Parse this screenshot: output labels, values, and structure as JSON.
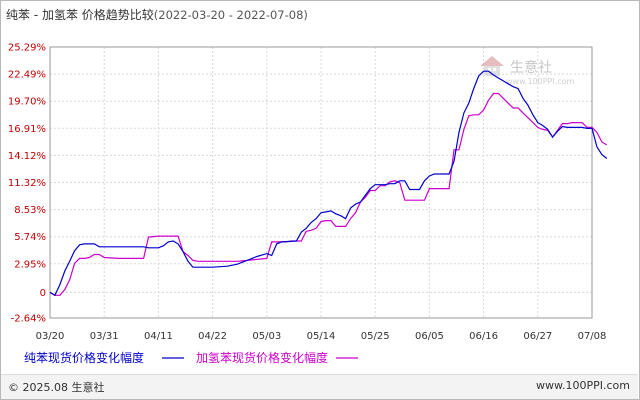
{
  "title": "纯苯 - 加氢苯 价格趋势比较",
  "date_range": "(2022-03-20 - 2022-07-08)",
  "watermark_text": "生意社",
  "watermark_url": "www.100PPI.com",
  "footer_left": "© 2025.08 生意社",
  "footer_right": "www.100PPI.com",
  "colors": {
    "series1": "#0000cc",
    "series2": "#cc00cc",
    "ytick": "#c00000"
  },
  "chart_data": {
    "type": "line",
    "ylim": [
      -2.64,
      25.29
    ],
    "yticks": [
      "25.29%",
      "22.49%",
      "19.70%",
      "16.91%",
      "14.12%",
      "11.32%",
      "8.53%",
      "5.74%",
      "2.95%",
      "0",
      "-2.64%"
    ],
    "ytick_values": [
      25.29,
      22.49,
      19.7,
      16.91,
      14.12,
      11.32,
      8.53,
      5.74,
      2.95,
      0,
      -2.64
    ],
    "xticks": [
      "03/20",
      "03/31",
      "04/11",
      "04/22",
      "05/03",
      "05/14",
      "05/25",
      "06/05",
      "06/16",
      "06/27",
      "07/08"
    ],
    "xlim_days": [
      0,
      110
    ],
    "grid": true,
    "legend_position": "bottom",
    "series": [
      {
        "name": "纯苯现货价格变化幅度",
        "points": [
          [
            0,
            0
          ],
          [
            1,
            -0.3
          ],
          [
            2,
            0.8
          ],
          [
            3,
            2.2
          ],
          [
            4,
            3.2
          ],
          [
            5,
            4.3
          ],
          [
            6,
            4.9
          ],
          [
            7,
            5.0
          ],
          [
            9,
            5.0
          ],
          [
            10,
            4.7
          ],
          [
            13,
            4.7
          ],
          [
            16,
            4.7
          ],
          [
            19,
            4.7
          ],
          [
            20,
            4.6
          ],
          [
            22,
            4.6
          ],
          [
            23,
            4.8
          ],
          [
            24,
            5.2
          ],
          [
            25,
            5.3
          ],
          [
            26,
            5.0
          ],
          [
            27,
            4.2
          ],
          [
            28,
            3.2
          ],
          [
            29,
            2.6
          ],
          [
            30,
            2.6
          ],
          [
            33,
            2.6
          ],
          [
            36,
            2.7
          ],
          [
            38,
            2.9
          ],
          [
            40,
            3.3
          ],
          [
            41,
            3.5
          ],
          [
            42,
            3.7
          ],
          [
            44,
            4.0
          ],
          [
            45,
            3.8
          ],
          [
            46,
            5.0
          ],
          [
            47,
            5.2
          ],
          [
            50,
            5.3
          ],
          [
            51,
            6.2
          ],
          [
            52,
            6.6
          ],
          [
            53,
            7.2
          ],
          [
            54,
            7.6
          ],
          [
            55,
            8.2
          ],
          [
            56,
            8.3
          ],
          [
            57,
            8.4
          ],
          [
            58,
            8.1
          ],
          [
            59,
            7.9
          ],
          [
            60,
            7.6
          ],
          [
            61,
            8.7
          ],
          [
            62,
            9.1
          ],
          [
            63,
            9.3
          ],
          [
            64,
            10.0
          ],
          [
            65,
            10.7
          ],
          [
            66,
            11.1
          ],
          [
            67,
            11.1
          ],
          [
            68,
            11.1
          ],
          [
            69,
            11.2
          ],
          [
            70,
            11.2
          ],
          [
            71,
            11.5
          ],
          [
            72,
            11.5
          ],
          [
            73,
            10.6
          ],
          [
            74,
            10.6
          ],
          [
            75,
            10.6
          ],
          [
            76,
            11.5
          ],
          [
            77,
            12.0
          ],
          [
            78,
            12.2
          ],
          [
            79,
            12.2
          ],
          [
            80,
            12.2
          ],
          [
            81,
            12.2
          ],
          [
            82,
            13.5
          ],
          [
            83,
            16.5
          ],
          [
            84,
            18.5
          ],
          [
            85,
            19.5
          ],
          [
            86,
            21.0
          ],
          [
            87,
            22.3
          ],
          [
            88,
            22.8
          ],
          [
            89,
            22.8
          ],
          [
            90,
            22.4
          ],
          [
            91,
            22.1
          ],
          [
            92,
            21.8
          ],
          [
            93,
            21.5
          ],
          [
            94,
            21.2
          ],
          [
            95,
            21.0
          ],
          [
            96,
            20.0
          ],
          [
            97,
            19.3
          ],
          [
            98,
            18.3
          ],
          [
            99,
            17.5
          ],
          [
            100,
            17.2
          ],
          [
            101,
            16.8
          ],
          [
            102,
            16.0
          ],
          [
            103,
            16.6
          ],
          [
            104,
            17.1
          ],
          [
            105,
            17.0
          ],
          [
            106,
            17.0
          ],
          [
            107,
            17.0
          ],
          [
            108,
            17.0
          ],
          [
            109,
            16.9
          ],
          [
            110,
            16.9
          ],
          [
            111,
            15.0
          ],
          [
            112,
            14.2
          ],
          [
            113,
            13.8
          ]
        ]
      },
      {
        "name": "加氢苯现货价格变化幅度",
        "points": [
          [
            0,
            0
          ],
          [
            1,
            -0.3
          ],
          [
            2,
            -0.3
          ],
          [
            3,
            0.3
          ],
          [
            4,
            1.3
          ],
          [
            5,
            3.0
          ],
          [
            6,
            3.5
          ],
          [
            7,
            3.5
          ],
          [
            8,
            3.6
          ],
          [
            9,
            3.9
          ],
          [
            10,
            3.9
          ],
          [
            11,
            3.6
          ],
          [
            14,
            3.5
          ],
          [
            18,
            3.5
          ],
          [
            19,
            3.5
          ],
          [
            20,
            5.7
          ],
          [
            22,
            5.8
          ],
          [
            26,
            5.8
          ],
          [
            27,
            4.2
          ],
          [
            28,
            3.8
          ],
          [
            29,
            3.3
          ],
          [
            30,
            3.2
          ],
          [
            38,
            3.2
          ],
          [
            40,
            3.3
          ],
          [
            42,
            3.4
          ],
          [
            44,
            3.5
          ],
          [
            45,
            5.2
          ],
          [
            47,
            5.2
          ],
          [
            48,
            5.2
          ],
          [
            49,
            5.3
          ],
          [
            50,
            5.3
          ],
          [
            51,
            5.3
          ],
          [
            52,
            6.3
          ],
          [
            53,
            6.4
          ],
          [
            54,
            6.6
          ],
          [
            55,
            7.3
          ],
          [
            56,
            7.4
          ],
          [
            57,
            7.4
          ],
          [
            58,
            6.8
          ],
          [
            59,
            6.8
          ],
          [
            60,
            6.8
          ],
          [
            61,
            7.6
          ],
          [
            62,
            8.2
          ],
          [
            63,
            9.3
          ],
          [
            64,
            9.8
          ],
          [
            65,
            10.5
          ],
          [
            66,
            10.5
          ],
          [
            67,
            11.0
          ],
          [
            68,
            11.0
          ],
          [
            69,
            11.4
          ],
          [
            70,
            11.5
          ],
          [
            71,
            11.3
          ],
          [
            72,
            9.5
          ],
          [
            75,
            9.5
          ],
          [
            76,
            9.5
          ],
          [
            77,
            10.7
          ],
          [
            80,
            10.7
          ],
          [
            81,
            10.7
          ],
          [
            82,
            14.7
          ],
          [
            83,
            14.7
          ],
          [
            84,
            16.8
          ],
          [
            85,
            18.2
          ],
          [
            86,
            18.3
          ],
          [
            87,
            18.3
          ],
          [
            88,
            18.8
          ],
          [
            89,
            19.8
          ],
          [
            90,
            20.5
          ],
          [
            91,
            20.5
          ],
          [
            92,
            20.0
          ],
          [
            93,
            19.5
          ],
          [
            94,
            19.0
          ],
          [
            95,
            19.0
          ],
          [
            96,
            18.5
          ],
          [
            97,
            18.0
          ],
          [
            98,
            17.5
          ],
          [
            99,
            17.0
          ],
          [
            100,
            16.8
          ],
          [
            101,
            16.7
          ],
          [
            102,
            16.0
          ],
          [
            103,
            16.7
          ],
          [
            104,
            17.4
          ],
          [
            105,
            17.4
          ],
          [
            106,
            17.5
          ],
          [
            107,
            17.5
          ],
          [
            108,
            17.5
          ],
          [
            109,
            17.0
          ],
          [
            110,
            17.0
          ],
          [
            111,
            16.5
          ],
          [
            112,
            15.5
          ],
          [
            113,
            15.2
          ]
        ]
      }
    ]
  }
}
